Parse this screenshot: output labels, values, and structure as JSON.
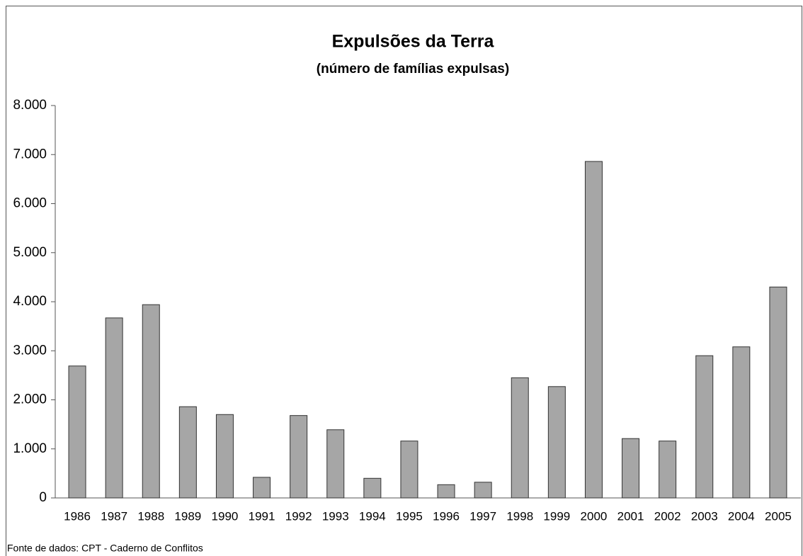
{
  "chart_data": {
    "type": "bar",
    "title": "Expulsões da Terra",
    "subtitle": "(número de famílias expulsas)",
    "source": "Fonte de dados:  CPT - Caderno de Conflitos",
    "categories": [
      "1986",
      "1987",
      "1988",
      "1989",
      "1990",
      "1991",
      "1992",
      "1993",
      "1994",
      "1995",
      "1996",
      "1997",
      "1998",
      "1999",
      "2000",
      "2001",
      "2002",
      "2003",
      "2004",
      "2005"
    ],
    "values": [
      2690,
      3670,
      3940,
      1860,
      1700,
      420,
      1680,
      1390,
      400,
      1160,
      270,
      320,
      2450,
      2270,
      6860,
      1210,
      1160,
      2900,
      3080,
      4300
    ],
    "color": "#a6a6a6",
    "ylim": [
      0,
      8000
    ],
    "yticks": [
      0,
      {
        "value": 1000,
        "label": "1.000"
      },
      {
        "value": 2000,
        "label": "2.000"
      },
      {
        "value": 3000,
        "label": "3.000"
      },
      {
        "value": 4000,
        "label": "4.000"
      },
      {
        "value": 5000,
        "label": "5.000"
      },
      {
        "value": 6000,
        "label": "6.000"
      },
      {
        "value": 7000,
        "label": "7.000"
      },
      {
        "value": 8000,
        "label": "8.000"
      }
    ],
    "grid": false
  }
}
